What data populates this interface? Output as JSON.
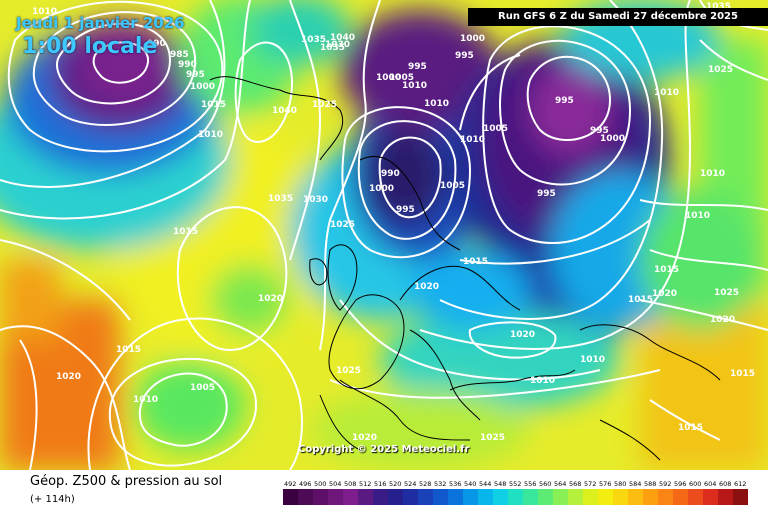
{
  "header": {
    "date": "Jeudi 1 janvier 2026",
    "local_time": "1:00 locale",
    "run": "Run GFS 6 Z du Samedi 27 décembre 2025"
  },
  "copyright": "Copyright © 2025 Meteociel.fr",
  "legend": {
    "title": "Géop. Z500 & pression au sol",
    "forecast_step": "(+ 114h)",
    "scale_values": [
      "492",
      "496",
      "500",
      "504",
      "508",
      "512",
      "516",
      "520",
      "524",
      "528",
      "532",
      "536",
      "540",
      "544",
      "548",
      "552",
      "556",
      "560",
      "564",
      "568",
      "572",
      "576",
      "580",
      "584",
      "588",
      "592",
      "596",
      "600",
      "604",
      "608",
      "612"
    ],
    "scale_colors": [
      "#3a0040",
      "#4d0a55",
      "#5e1068",
      "#6e167a",
      "#7e1d8c",
      "#5a1a82",
      "#3a1c86",
      "#26208e",
      "#1e2ea2",
      "#1a42b8",
      "#1058cc",
      "#0a74dc",
      "#0896e6",
      "#08b6ec",
      "#10d0e6",
      "#20e0c4",
      "#38e69c",
      "#5cec74",
      "#88f054",
      "#b4f03c",
      "#dcf01e",
      "#f4ee10",
      "#fad810",
      "#fcbc10",
      "#fca010",
      "#fa8414",
      "#f46818",
      "#ec4c1c",
      "#dc2c1c",
      "#b81818",
      "#8c1010"
    ]
  },
  "isobars": [
    {
      "label": "1010"
    },
    {
      "label": "990"
    },
    {
      "label": "985"
    },
    {
      "label": "990"
    },
    {
      "label": "995"
    },
    {
      "label": "1000"
    },
    {
      "label": "1015"
    },
    {
      "label": "1010"
    },
    {
      "label": "1040"
    },
    {
      "label": "1035"
    },
    {
      "label": "1035"
    },
    {
      "label": "1040"
    },
    {
      "label": "1030"
    },
    {
      "label": "1025"
    },
    {
      "label": "1035"
    },
    {
      "label": "1030"
    },
    {
      "label": "1025"
    },
    {
      "label": "1015"
    },
    {
      "label": "1020"
    },
    {
      "label": "1015"
    },
    {
      "label": "1020"
    },
    {
      "label": "1010"
    },
    {
      "label": "1005"
    },
    {
      "label": "1025"
    },
    {
      "label": "1000"
    },
    {
      "label": "995"
    },
    {
      "label": "1005"
    },
    {
      "label": "1010"
    },
    {
      "label": "1000"
    },
    {
      "label": "1010"
    },
    {
      "label": "995"
    },
    {
      "label": "990"
    },
    {
      "label": "1000"
    },
    {
      "label": "995"
    },
    {
      "label": "1005"
    },
    {
      "label": "1010"
    },
    {
      "label": "1005"
    },
    {
      "label": "995"
    },
    {
      "label": "995"
    },
    {
      "label": "1000"
    },
    {
      "label": "995"
    },
    {
      "label": "1015"
    },
    {
      "label": "1020"
    },
    {
      "label": "1020"
    },
    {
      "label": "1010"
    },
    {
      "label": "1010"
    },
    {
      "label": "1015"
    },
    {
      "label": "1025"
    },
    {
      "label": "1010"
    },
    {
      "label": "1035"
    },
    {
      "label": "1025"
    },
    {
      "label": "1010"
    },
    {
      "label": "1015"
    },
    {
      "label": "1020"
    },
    {
      "label": "1015"
    },
    {
      "label": "1020"
    },
    {
      "label": "1025"
    },
    {
      "label": "1020"
    },
    {
      "label": "1010"
    },
    {
      "label": "1015"
    }
  ]
}
